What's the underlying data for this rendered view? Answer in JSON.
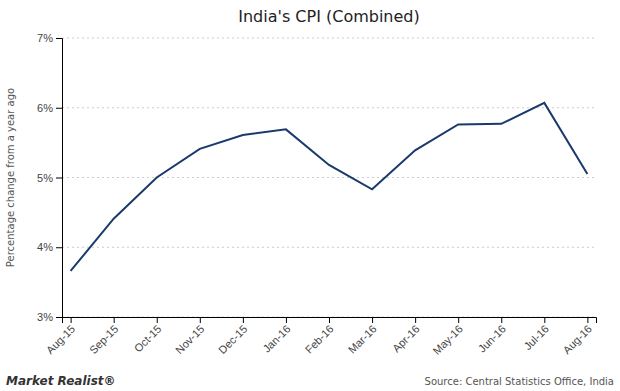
{
  "chart_data": {
    "type": "line",
    "title": "India's CPI (Combined)",
    "ylabel": "Percentage change from a year ago",
    "annotations": [
      "Market Realist®",
      "Source: Central Statistics Office, India"
    ],
    "categories": [
      "Aug-15",
      "Sep-15",
      "Oct-15",
      "Nov-15",
      "Dec-15",
      "Jan-16",
      "Feb-16",
      "Mar-16",
      "Apr-16",
      "May-16",
      "Jun-16",
      "Jul-16",
      "Aug-16"
    ],
    "values": [
      3.66,
      4.41,
      5.0,
      5.41,
      5.61,
      5.69,
      5.18,
      4.83,
      5.39,
      5.76,
      5.77,
      6.07,
      5.05
    ],
    "color": "#1a3a6b",
    "ylim": [
      3.0,
      7.0
    ],
    "yticks": [
      {
        "value": 3,
        "label": "3%"
      },
      {
        "value": 4,
        "label": "4%"
      },
      {
        "value": 5,
        "label": "5%"
      },
      {
        "value": 6,
        "label": "6%"
      },
      {
        "value": 7,
        "label": "7%"
      }
    ],
    "grid": true
  }
}
